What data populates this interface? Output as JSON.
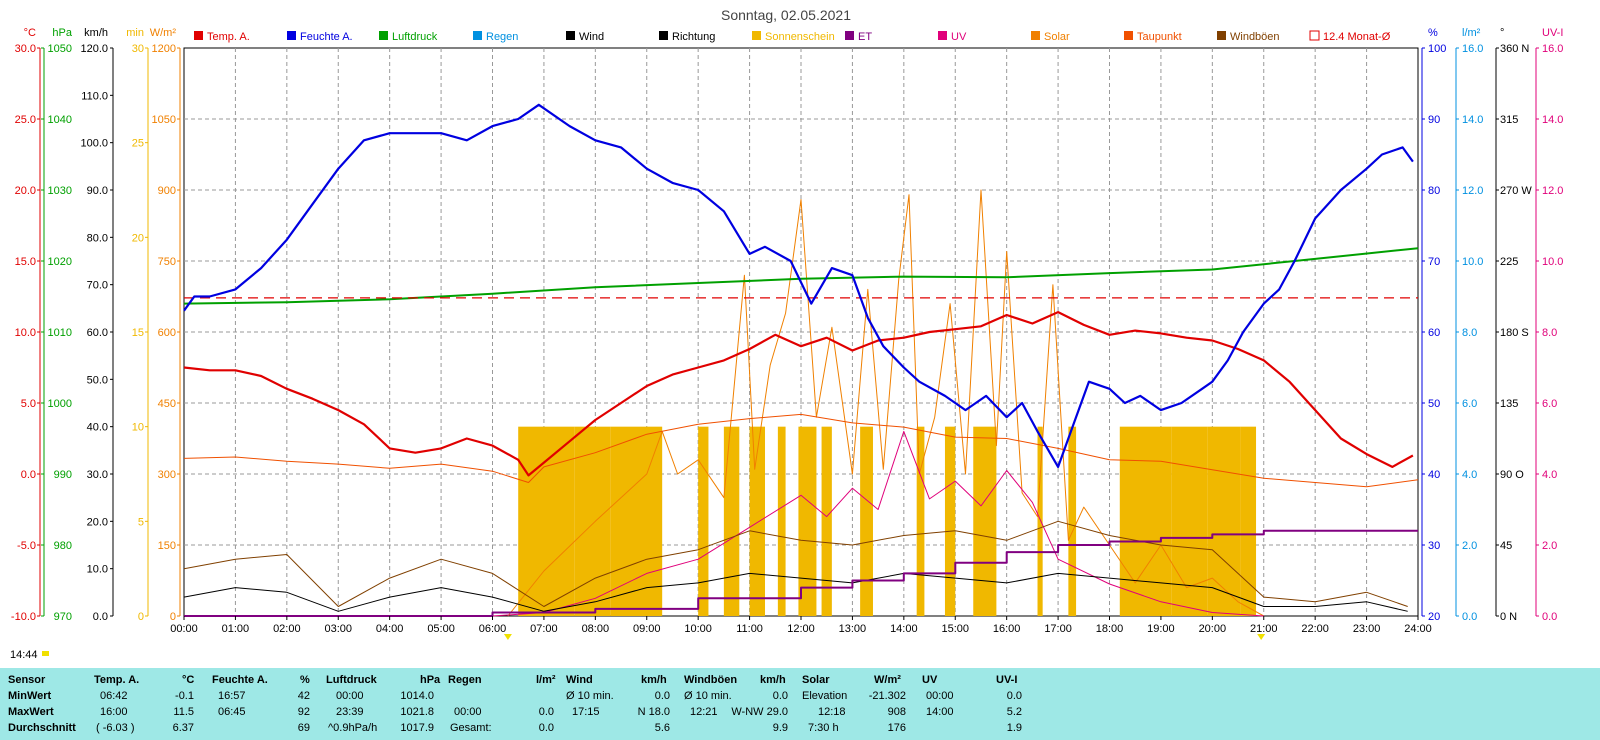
{
  "title": "Sonntag, 02.05.2021",
  "time_now": "14:44",
  "legend": [
    {
      "label": "Temp. A.",
      "color": "#e00000"
    },
    {
      "label": "Feuchte A.",
      "color": "#0000e0"
    },
    {
      "label": "Luftdruck",
      "color": "#00a000"
    },
    {
      "label": "Regen",
      "color": "#0090e0"
    },
    {
      "label": "Wind",
      "color": "#000000"
    },
    {
      "label": "Richtung",
      "color": "#000000"
    },
    {
      "label": "Sonnenschein",
      "color": "#f0b800"
    },
    {
      "label": "ET",
      "color": "#800080"
    },
    {
      "label": "UV",
      "color": "#e0007a"
    },
    {
      "label": "Solar",
      "color": "#f08000"
    },
    {
      "label": "Taupunkt",
      "color": "#f05000"
    },
    {
      "label": "Windböen",
      "color": "#804000"
    },
    {
      "label": "12.4 Monat-Ø",
      "color": "#e00000"
    }
  ],
  "axes_left": {
    "temp": {
      "unit": "°C",
      "color": "#e00000",
      "ticks": [
        "30.0",
        "25.0",
        "20.0",
        "15.0",
        "10.0",
        "5.0",
        "0.0",
        "-5.0",
        "-10.0"
      ]
    },
    "hpa": {
      "unit": "hPa",
      "color": "#00a000",
      "ticks": [
        "1050",
        "1040",
        "1030",
        "1020",
        "1010",
        "1000",
        "990",
        "980",
        "970"
      ]
    },
    "kmh": {
      "unit": "km/h",
      "color": "#000000",
      "ticks": [
        "120.0",
        "110.0",
        "100.0",
        "90.0",
        "80.0",
        "70.0",
        "60.0",
        "50.0",
        "40.0",
        "30.0",
        "20.0",
        "10.0",
        "0.0"
      ]
    },
    "min": {
      "unit": "min",
      "color": "#f0b800",
      "ticks": [
        "30",
        "25",
        "20",
        "15",
        "10",
        "5",
        "0"
      ]
    },
    "wm2": {
      "unit": "W/m²",
      "color": "#f08000",
      "ticks": [
        "1200",
        "1050",
        "900",
        "750",
        "600",
        "450",
        "300",
        "150",
        "0"
      ]
    }
  },
  "axes_right": {
    "pct": {
      "unit": "%",
      "color": "#0000e0",
      "ticks": [
        "100",
        "90",
        "80",
        "70",
        "60",
        "50",
        "40",
        "30",
        "20"
      ]
    },
    "lm2": {
      "unit": "l/m²",
      "color": "#0090e0",
      "ticks": [
        "16.0",
        "14.0",
        "12.0",
        "10.0",
        "8.0",
        "6.0",
        "4.0",
        "2.0",
        "0.0"
      ]
    },
    "deg": {
      "unit": "°",
      "color": "#000000",
      "ticks": [
        "360 N",
        "315",
        "270 W",
        "225",
        "180 S",
        "135",
        "90 O",
        "45",
        "0 N"
      ]
    },
    "uvi": {
      "unit": "UV-I",
      "color": "#e0007a",
      "ticks": [
        "16.0",
        "14.0",
        "12.0",
        "10.0",
        "8.0",
        "6.0",
        "4.0",
        "2.0",
        "0.0"
      ]
    }
  },
  "x_ticks": [
    "00:00",
    "01:00",
    "02:00",
    "03:00",
    "04:00",
    "05:00",
    "06:00",
    "07:00",
    "08:00",
    "09:00",
    "10:00",
    "11:00",
    "12:00",
    "13:00",
    "14:00",
    "15:00",
    "16:00",
    "17:00",
    "18:00",
    "19:00",
    "20:00",
    "21:00",
    "22:00",
    "23:00",
    "24:00"
  ],
  "chart_data": {
    "type": "line",
    "x_unit": "hour",
    "xlim": [
      0,
      24
    ],
    "series": [
      {
        "name": "Temp. A.",
        "axis": "temp",
        "color": "#e00000",
        "x": [
          0,
          0.5,
          1,
          1.5,
          2,
          2.5,
          3,
          3.5,
          4,
          4.5,
          5,
          5.5,
          6,
          6.5,
          6.7,
          7,
          7.5,
          8,
          8.5,
          9,
          9.5,
          10,
          10.5,
          11,
          11.5,
          12,
          12.5,
          13,
          13.5,
          14,
          14.5,
          15,
          15.5,
          16,
          16.5,
          17,
          17.5,
          18,
          18.5,
          19,
          19.5,
          20,
          20.5,
          21,
          21.5,
          22,
          22.5,
          23,
          23.5,
          23.9
        ],
        "y": [
          7.5,
          7.3,
          7.3,
          6.9,
          6.0,
          5.3,
          4.5,
          3.5,
          1.8,
          1.5,
          1.8,
          2.5,
          2.0,
          1.0,
          -0.1,
          0.8,
          2.3,
          3.8,
          5.0,
          6.2,
          7.0,
          7.5,
          8.0,
          8.8,
          9.8,
          9.0,
          9.6,
          8.7,
          9.4,
          9.6,
          10.0,
          10.2,
          10.4,
          11.2,
          10.6,
          11.4,
          10.5,
          9.8,
          10.1,
          9.9,
          9.6,
          9.4,
          8.8,
          8.0,
          6.5,
          4.5,
          2.5,
          1.4,
          0.5,
          1.3
        ]
      },
      {
        "name": "Feuchte A.",
        "axis": "pct",
        "color": "#0000e0",
        "x": [
          0,
          0.2,
          0.5,
          1,
          1.5,
          2,
          2.5,
          3,
          3.5,
          4,
          4.5,
          5,
          5.5,
          6,
          6.5,
          6.9,
          7.5,
          8,
          8.5,
          9,
          9.5,
          10,
          10.5,
          11,
          11.3,
          11.8,
          12.2,
          12.6,
          13,
          13.3,
          13.6,
          14,
          14.3,
          14.8,
          15.2,
          15.6,
          16,
          16.3,
          16.6,
          17,
          17.3,
          17.6,
          18,
          18.3,
          18.6,
          19,
          19.4,
          19.8,
          20,
          20.3,
          20.6,
          21,
          21.3,
          21.6,
          22,
          22.5,
          23,
          23.3,
          23.7,
          23.9
        ],
        "y": [
          63,
          65,
          65,
          66,
          69,
          73,
          78,
          83,
          87,
          88,
          88,
          88,
          87,
          89,
          90,
          92,
          89,
          87,
          86,
          83,
          81,
          80,
          77,
          71,
          72,
          70,
          64,
          69,
          68,
          62,
          58,
          55,
          53,
          51,
          49,
          51,
          48,
          50,
          46,
          41,
          47,
          53,
          52,
          50,
          51,
          49,
          50,
          52,
          53,
          56,
          60,
          64,
          66,
          70,
          76,
          80,
          83,
          85,
          86,
          84
        ]
      },
      {
        "name": "Luftdruck",
        "axis": "hpa",
        "color": "#00a000",
        "x": [
          0,
          2,
          4,
          6,
          8,
          10,
          12,
          14,
          16,
          18,
          20,
          22,
          24
        ],
        "y": [
          1014.0,
          1014.2,
          1014.6,
          1015.4,
          1016.3,
          1016.9,
          1017.5,
          1017.8,
          1017.7,
          1018.3,
          1018.8,
          1020.3,
          1021.8
        ]
      },
      {
        "name": "Taupunkt",
        "axis": "temp",
        "color": "#f05000",
        "x": [
          0,
          1,
          2,
          3,
          4,
          5,
          6,
          6.7,
          7,
          8,
          9,
          10,
          11,
          12,
          13,
          14,
          15,
          16,
          17,
          18,
          19,
          20,
          21,
          22,
          23,
          24
        ],
        "y": [
          1.1,
          1.2,
          0.9,
          0.7,
          0.4,
          0.7,
          0.2,
          -0.6,
          0.5,
          1.5,
          2.8,
          3.5,
          3.9,
          4.2,
          3.6,
          3.3,
          2.6,
          2.5,
          1.8,
          1.0,
          0.9,
          0.3,
          -0.3,
          -0.6,
          -0.9,
          -0.4
        ]
      },
      {
        "name": "Solar",
        "axis": "wm2",
        "color": "#f08000",
        "x": [
          6.3,
          7,
          8,
          9,
          9.3,
          9.6,
          10,
          10.5,
          10.9,
          11.1,
          11.4,
          11.7,
          12,
          12.3,
          12.6,
          13,
          13.3,
          13.6,
          13.9,
          14.1,
          14.3,
          14.6,
          14.9,
          15.2,
          15.5,
          15.8,
          16,
          16.3,
          16.6,
          16.9,
          17.2,
          17.5,
          18,
          18.5,
          19,
          19.5,
          20,
          20.5,
          21
        ],
        "y": [
          0,
          95,
          200,
          300,
          390,
          300,
          330,
          250,
          720,
          310,
          530,
          640,
          880,
          420,
          610,
          300,
          690,
          310,
          710,
          890,
          300,
          420,
          660,
          300,
          900,
          360,
          770,
          260,
          210,
          700,
          160,
          230,
          150,
          70,
          150,
          60,
          80,
          30,
          0
        ]
      },
      {
        "name": "UV",
        "axis": "uvi",
        "color": "#e0007a",
        "x": [
          6,
          7,
          8,
          9,
          10,
          11,
          12,
          12.5,
          13,
          13.5,
          14,
          14.5,
          15,
          15.5,
          16,
          16.5,
          17,
          18,
          19,
          20,
          21
        ],
        "y": [
          0,
          0.1,
          0.5,
          1.2,
          1.6,
          2.5,
          3.4,
          2.8,
          3.6,
          3.0,
          5.2,
          3.3,
          3.8,
          3.1,
          4.1,
          3.2,
          1.6,
          0.9,
          0.4,
          0.1,
          0
        ]
      },
      {
        "name": "Wind",
        "axis": "kmh",
        "color": "#000000",
        "x": [
          0,
          1,
          2,
          3,
          4,
          5,
          6,
          7,
          8,
          9,
          10,
          11,
          12,
          13,
          14,
          15,
          16,
          17,
          18,
          19,
          20,
          21,
          22,
          23,
          23.8
        ],
        "y": [
          4,
          6,
          5,
          1,
          4,
          6,
          4,
          1,
          3,
          6,
          7,
          9,
          8,
          7,
          9,
          8,
          7,
          9,
          8,
          7,
          6,
          2,
          2,
          3,
          1
        ]
      },
      {
        "name": "Windböen",
        "axis": "kmh",
        "color": "#804000",
        "x": [
          0,
          1,
          2,
          3,
          4,
          5,
          6,
          7,
          8,
          9,
          10,
          11,
          12,
          13,
          14,
          15,
          16,
          17,
          18,
          19,
          20,
          21,
          22,
          23,
          23.8
        ],
        "y": [
          10,
          12,
          13,
          2,
          8,
          12,
          9,
          2,
          8,
          12,
          14,
          18,
          16,
          15,
          17,
          18,
          16,
          20,
          17,
          15,
          14,
          4,
          3,
          5,
          2
        ]
      },
      {
        "name": "ET",
        "axis": "lm2",
        "color": "#800080",
        "x": [
          0,
          6,
          8,
          10,
          12,
          13,
          14,
          15,
          16,
          17,
          18,
          19,
          20,
          21,
          22,
          24
        ],
        "y": [
          0,
          0.1,
          0.2,
          0.5,
          0.8,
          1.0,
          1.2,
          1.5,
          1.8,
          2.0,
          2.1,
          2.2,
          2.3,
          2.4,
          2.4,
          2.4
        ]
      },
      {
        "name": "12.4 Monat-Ø",
        "axis": "temp",
        "color": "#e00000",
        "dashed": true,
        "x": [
          0,
          24
        ],
        "y": [
          12.4,
          12.4
        ]
      }
    ],
    "sunshine": {
      "axis": "min",
      "color": "#f0b800",
      "value": 10,
      "intervals": [
        [
          6.5,
          7.6
        ],
        [
          7.6,
          8.3
        ],
        [
          8.3,
          9.3
        ],
        [
          10.0,
          10.2
        ],
        [
          10.5,
          10.8
        ],
        [
          11.0,
          11.3
        ],
        [
          11.55,
          11.7
        ],
        [
          11.95,
          12.3
        ],
        [
          12.4,
          12.6
        ],
        [
          13.15,
          13.4
        ],
        [
          14.25,
          14.4
        ],
        [
          14.8,
          15.0
        ],
        [
          15.35,
          15.8
        ],
        [
          16.6,
          16.7
        ],
        [
          17.2,
          17.35
        ],
        [
          18.2,
          19.2
        ],
        [
          19.2,
          19.9
        ],
        [
          19.9,
          20.55
        ],
        [
          20.55,
          20.85
        ]
      ]
    },
    "direction_unit": "°"
  },
  "stats": {
    "headers": {
      "sensor": "Sensor",
      "temp": "Temp. A.",
      "temp_unit": "°C",
      "hum": "Feuchte A.",
      "hum_unit": "%",
      "press": "Luftdruck",
      "press_unit": "hPa",
      "rain": "Regen",
      "rain_unit": "l/m²",
      "wind": "Wind",
      "wind_unit": "km/h",
      "gust": "Windböen",
      "gust_unit": "km/h",
      "solar": "Solar",
      "solar_unit": "W/m²",
      "uv": "UV",
      "uv_unit": "UV-I"
    },
    "min": {
      "label": "MinWert",
      "temp_t": "06:42",
      "temp_v": "-0.1",
      "hum_t": "16:57",
      "hum_v": "42",
      "press_t": "00:00",
      "press_v": "1014.0",
      "wind_t": "Ø 10 min.",
      "wind_v": "0.0",
      "gust_t": "Ø 10 min.",
      "gust_v": "0.0",
      "solar_t": "Elevation",
      "solar_v": "-21.302",
      "uv_t": "00:00",
      "uv_v": "0.0"
    },
    "max": {
      "label": "MaxWert",
      "temp_t": "16:00",
      "temp_v": "11.5",
      "hum_t": "06:45",
      "hum_v": "92",
      "press_t": "23:39",
      "press_v": "1021.8",
      "rain_t": "00:00",
      "rain_v": "0.0",
      "wind_t": "17:15",
      "wind_v": "N 18.0",
      "gust_t": "12:21",
      "gust_v": "W-NW 29.0",
      "solar_t": "12:18",
      "solar_v": "908",
      "uv_t": "14:00",
      "uv_v": "5.2"
    },
    "avg": {
      "label": "Durchschnitt",
      "temp_t": "( -6.03 )",
      "temp_v": "6.37",
      "hum_v": "69",
      "press_t": "^0.9hPa/h",
      "press_v": "1017.9",
      "rain_t": "Gesamt:",
      "rain_v": "0.0",
      "wind_v": "5.6",
      "gust_v": "9.9",
      "solar_t": "7:30 h",
      "solar_v": "176",
      "uv_v": "1.9"
    }
  }
}
